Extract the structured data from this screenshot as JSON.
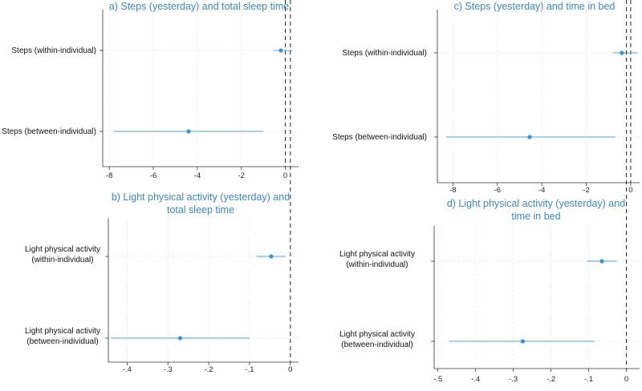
{
  "chart_data": [
    {
      "type": "coefficient-plot",
      "title": [
        "a) Steps (yesterday) and total sleep time"
      ],
      "xlim": [
        -8.3,
        0.6
      ],
      "xticks": [
        -8,
        -6,
        -4,
        -2,
        0
      ],
      "xtick_labels": [
        "-8",
        "-6",
        "-4",
        "-2",
        "0"
      ],
      "reference_line": 0,
      "series": [
        {
          "name": [
            "Steps (within-individual)"
          ],
          "estimate": -0.2,
          "ci_low": -0.55,
          "ci_high": 0.3
        },
        {
          "name": [
            "Steps (between-individual)"
          ],
          "estimate": -4.4,
          "ci_low": -7.8,
          "ci_high": -1.0
        }
      ]
    },
    {
      "type": "coefficient-plot",
      "title": [
        "c) Steps (yesterday) and time in bed"
      ],
      "xlim": [
        -8.7,
        0.4
      ],
      "xticks": [
        -8,
        -6,
        -4,
        -2,
        0
      ],
      "xtick_labels": [
        "-8",
        "-6",
        "-4",
        "-2",
        "0"
      ],
      "reference_line": 0,
      "series": [
        {
          "name": [
            "Steps (within-individual)"
          ],
          "estimate": -0.4,
          "ci_low": -0.8,
          "ci_high": 0.3
        },
        {
          "name": [
            "Steps (between-individual)"
          ],
          "estimate": -4.55,
          "ci_low": -8.3,
          "ci_high": -0.7
        }
      ]
    },
    {
      "type": "coefficient-plot",
      "title": [
        "b) Light physical activity (yesterday) and",
        "total sleep time"
      ],
      "xlim": [
        -0.446,
        0.02
      ],
      "xticks": [
        -0.4,
        -0.3,
        -0.2,
        -0.1,
        0
      ],
      "xtick_labels": [
        "-.4",
        "-.3",
        "-.2",
        "-.1",
        "0"
      ],
      "reference_line": 0,
      "series": [
        {
          "name": [
            "Light physical activity",
            "(within-individual)"
          ],
          "estimate": -0.047,
          "ci_low": -0.083,
          "ci_high": -0.012
        },
        {
          "name": [
            "Light physical activity",
            "(between-individual)"
          ],
          "estimate": -0.27,
          "ci_low": -0.44,
          "ci_high": -0.1
        }
      ]
    },
    {
      "type": "coefficient-plot",
      "title": [
        "d) Light physical activity (yesterday) and",
        "time in bed"
      ],
      "xlim": [
        -0.51,
        0.035
      ],
      "xticks": [
        -0.5,
        -0.4,
        -0.3,
        -0.2,
        -0.1,
        0
      ],
      "xtick_labels": [
        "-.5",
        "-.4",
        "-.3",
        "-.2",
        "-.1",
        "0"
      ],
      "reference_line": 0,
      "series": [
        {
          "name": [
            "Light physical activity",
            "(within-individual)"
          ],
          "estimate": -0.065,
          "ci_low": -0.105,
          "ci_high": -0.025
        },
        {
          "name": [
            "Light physical activity",
            "(between-individual)"
          ],
          "estimate": -0.275,
          "ci_low": -0.47,
          "ci_high": -0.085
        }
      ]
    }
  ]
}
